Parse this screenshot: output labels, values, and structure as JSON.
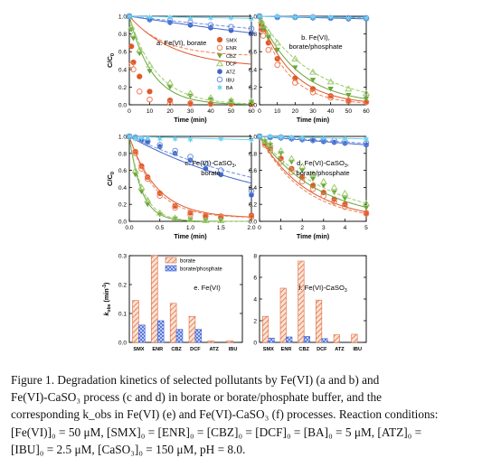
{
  "figure": {
    "caption_lines": [
      "Figure 1. Degradation kinetics of selected pollutants by Fe(VI) (a and b) and",
      "Fe(VI)-CaSO₃ process (c and d) in borate or borate/phosphate buffer, and the",
      "corresponding k_obs in Fe(VI) (e) and Fe(VI)-CaSO₃ (f) processes. Reaction conditions:",
      "[Fe(VI)]₀ = 50 μM, [SMX]₀ = [ENR]₀ = [CBZ]₀ = [DCF]₀ = [BA]₀ = 5 μM, [ATZ]₀ =",
      "[IBU]₀ = 2.5 μM, [CaSO₃]₀ = 150 μM, pH = 8.0."
    ]
  },
  "colors": {
    "SMX": "#dd5a2b",
    "ENR": "#f0805a",
    "CBZ": "#6aa53a",
    "DCF": "#9ccb6b",
    "ATZ": "#3e66c9",
    "IBU": "#6f8fe0",
    "BA": "#6fd4ef"
  },
  "chart_data": [
    {
      "type": "scatter",
      "panel": "a",
      "label": "a. Fe(VI), borate",
      "xlabel": "Time (min)",
      "ylabel": "C/C0",
      "xlim": [
        0,
        60
      ],
      "ylim": [
        0,
        1.0
      ],
      "xticks": [
        0,
        10,
        20,
        30,
        40,
        50,
        60
      ],
      "yticks": [
        0.0,
        0.2,
        0.4,
        0.6,
        0.8,
        1.0
      ],
      "legend": [
        "SMX",
        "ENR",
        "CBZ",
        "DCF",
        "ATZ",
        "IBU",
        "BA"
      ],
      "legend_position": "right",
      "series": [
        {
          "name": "SMX",
          "x": [
            0,
            1,
            2,
            5,
            10,
            20,
            30,
            40,
            50,
            60
          ],
          "y": [
            1.0,
            0.66,
            0.48,
            0.32,
            0.15,
            0.05,
            0.02,
            0.01,
            0.01,
            0.01
          ],
          "fit": [
            0.42,
            0.58,
            0.045
          ]
        },
        {
          "name": "ENR",
          "x": [
            0,
            1,
            2,
            5,
            10,
            20,
            30,
            40,
            50,
            60
          ],
          "y": [
            1.0,
            0.45,
            0.4,
            0.15,
            0.06,
            0.02,
            0.01,
            0.01,
            0.01,
            0.01
          ],
          "fit": [
            0.55,
            0.45,
            0.06
          ]
        },
        {
          "name": "CBZ",
          "x": [
            0,
            1,
            2,
            5,
            10,
            20,
            30,
            40,
            50,
            60
          ],
          "y": [
            1.0,
            0.85,
            0.75,
            0.58,
            0.38,
            0.2,
            0.1,
            0.06,
            0.04,
            0.03
          ],
          "fit": [
            0.0,
            1.0,
            0.09
          ]
        },
        {
          "name": "DCF",
          "x": [
            0,
            1,
            2,
            5,
            10,
            20,
            30,
            40,
            50,
            60
          ],
          "y": [
            1.0,
            0.88,
            0.8,
            0.62,
            0.45,
            0.25,
            0.13,
            0.08,
            0.05,
            0.04
          ],
          "fit": [
            0.0,
            1.0,
            0.075
          ]
        },
        {
          "name": "ATZ",
          "x": [
            0,
            10,
            20,
            30,
            40,
            50,
            60
          ],
          "y": [
            1.0,
            0.96,
            0.93,
            0.9,
            0.87,
            0.84,
            0.81
          ],
          "fit": [
            0.0,
            1.0,
            0.0035
          ]
        },
        {
          "name": "IBU",
          "x": [
            0,
            10,
            20,
            30,
            40,
            50,
            60
          ],
          "y": [
            1.0,
            0.97,
            0.95,
            0.93,
            0.9,
            0.88,
            0.86
          ],
          "fit": [
            0.0,
            1.0,
            0.0025
          ]
        },
        {
          "name": "BA",
          "x": [
            0,
            10,
            20,
            30,
            40,
            50,
            60
          ],
          "y": [
            1.0,
            0.99,
            0.99,
            0.98,
            0.98,
            0.98,
            0.97
          ],
          "fit": [
            0.0,
            1.0,
            0.0004
          ]
        }
      ]
    },
    {
      "type": "scatter",
      "panel": "b",
      "label": "b. Fe(VI), borate/phosphate",
      "xlabel": "Time (min)",
      "ylabel": "",
      "xlim": [
        0,
        60
      ],
      "ylim": [
        0,
        1.0
      ],
      "xticks": [
        0,
        10,
        20,
        30,
        40,
        50,
        60
      ],
      "yticks": [
        0.0,
        0.2,
        0.4,
        0.6,
        0.8,
        1.0
      ],
      "series": [
        {
          "name": "SMX",
          "x": [
            0,
            1,
            2,
            5,
            10,
            20,
            30,
            40,
            50,
            60
          ],
          "y": [
            1.0,
            0.9,
            0.85,
            0.7,
            0.52,
            0.3,
            0.18,
            0.1,
            0.05,
            0.03
          ],
          "fit": [
            0.0,
            1.0,
            0.055
          ]
        },
        {
          "name": "ENR",
          "x": [
            0,
            1,
            2,
            5,
            10,
            20,
            30,
            40,
            50,
            60
          ],
          "y": [
            1.0,
            0.85,
            0.78,
            0.62,
            0.45,
            0.25,
            0.14,
            0.08,
            0.04,
            0.03
          ],
          "fit": [
            0.0,
            1.0,
            0.065
          ]
        },
        {
          "name": "CBZ",
          "x": [
            0,
            1,
            2,
            5,
            10,
            20,
            30,
            40,
            50,
            60
          ],
          "y": [
            1.0,
            0.92,
            0.86,
            0.76,
            0.62,
            0.42,
            0.28,
            0.18,
            0.11,
            0.07
          ],
          "fit": [
            0.0,
            1.0,
            0.045
          ]
        },
        {
          "name": "DCF",
          "x": [
            0,
            1,
            2,
            5,
            10,
            20,
            30,
            40,
            50,
            60
          ],
          "y": [
            1.0,
            0.95,
            0.9,
            0.82,
            0.7,
            0.52,
            0.37,
            0.26,
            0.18,
            0.13
          ],
          "fit": [
            0.0,
            1.0,
            0.033
          ]
        },
        {
          "name": "ATZ",
          "x": [
            0,
            10,
            20,
            30,
            40,
            50,
            60
          ],
          "y": [
            1.0,
            0.99,
            0.99,
            0.98,
            0.98,
            0.97,
            0.97
          ],
          "fit": [
            0.0,
            1.0,
            0.0005
          ]
        },
        {
          "name": "IBU",
          "x": [
            0,
            10,
            20,
            30,
            40,
            50,
            60
          ],
          "y": [
            1.0,
            0.99,
            0.99,
            0.99,
            0.98,
            0.98,
            0.98
          ],
          "fit": [
            0.0,
            1.0,
            0.0003
          ]
        },
        {
          "name": "BA",
          "x": [
            0,
            10,
            20,
            30,
            40,
            50,
            60
          ],
          "y": [
            1.0,
            1.0,
            0.99,
            0.99,
            0.99,
            0.98,
            0.98
          ],
          "fit": [
            0.0,
            1.0,
            0.0002
          ]
        }
      ]
    },
    {
      "type": "scatter",
      "panel": "c",
      "label_line1": "c. Fe(VI)-CaSO",
      "label_sub": "3",
      "label_line1_end": ",",
      "label_line2": "borate",
      "xlabel": "Time (min)",
      "ylabel": "C/C0",
      "xlim": [
        0,
        2.0
      ],
      "ylim": [
        0,
        1.0
      ],
      "xticks": [
        0.0,
        0.5,
        1.0,
        1.5,
        2.0
      ],
      "yticks": [
        0.0,
        0.2,
        0.4,
        0.6,
        0.8,
        1.0
      ],
      "series": [
        {
          "name": "SMX",
          "x": [
            0,
            0.1,
            0.2,
            0.3,
            0.5,
            0.75,
            1.0,
            1.25,
            1.5,
            2.0
          ],
          "y": [
            1.0,
            0.82,
            0.65,
            0.52,
            0.33,
            0.18,
            0.1,
            0.07,
            0.06,
            0.07
          ],
          "fit": [
            0.04,
            0.96,
            2.2
          ]
        },
        {
          "name": "ENR",
          "x": [
            0,
            0.1,
            0.2,
            0.3,
            0.5,
            0.75,
            1.0,
            1.25,
            1.5,
            2.0
          ],
          "y": [
            1.0,
            0.8,
            0.62,
            0.5,
            0.3,
            0.16,
            0.08,
            0.06,
            0.05,
            0.05
          ],
          "fit": [
            0.04,
            0.96,
            2.4
          ]
        },
        {
          "name": "CBZ",
          "x": [
            0,
            0.1,
            0.2,
            0.3,
            0.5,
            0.75,
            1.0,
            1.25,
            1.5
          ],
          "y": [
            1.0,
            0.55,
            0.35,
            0.2,
            0.08,
            0.03,
            0.02,
            0.01,
            0.01
          ],
          "fit": [
            0.0,
            1.0,
            5.0
          ]
        },
        {
          "name": "DCF",
          "x": [
            0,
            0.1,
            0.2,
            0.3,
            0.5,
            0.75,
            1.0,
            1.25,
            1.5
          ],
          "y": [
            1.0,
            0.6,
            0.4,
            0.25,
            0.1,
            0.04,
            0.02,
            0.01,
            0.01
          ],
          "fit": [
            0.0,
            1.0,
            4.5
          ]
        },
        {
          "name": "ATZ",
          "x": [
            0,
            0.1,
            0.2,
            0.3,
            0.5,
            0.75,
            1.0,
            1.25,
            1.5,
            2.0
          ],
          "y": [
            1.0,
            0.98,
            0.95,
            0.93,
            0.88,
            0.8,
            0.72,
            0.62,
            0.55,
            0.31
          ],
          "fit": [
            0.0,
            1.0,
            0.4
          ]
        },
        {
          "name": "IBU",
          "x": [
            0,
            0.1,
            0.2,
            0.3,
            0.5,
            0.75,
            1.0,
            1.25,
            1.5,
            2.0
          ],
          "y": [
            1.0,
            0.99,
            0.96,
            0.94,
            0.9,
            0.83,
            0.76,
            0.68,
            0.6,
            0.36
          ],
          "fit": [
            0.0,
            1.0,
            0.33
          ]
        },
        {
          "name": "BA",
          "x": [
            0,
            0.1,
            0.2,
            0.3,
            0.5,
            0.75,
            1.0,
            1.5,
            2.0
          ],
          "y": [
            1.0,
            0.97,
            0.98,
            0.98,
            0.97,
            0.97,
            0.96,
            0.97,
            0.96
          ],
          "fit": [
            0.0,
            1.0,
            0.02
          ]
        }
      ]
    },
    {
      "type": "scatter",
      "panel": "d",
      "label_line1": "d. Fe(VI)-CaSO",
      "label_sub": "3",
      "label_line1_end": ",",
      "label_line2": "borate/phosphate",
      "xlabel": "Time (min)",
      "ylabel": "",
      "xlim": [
        0,
        5
      ],
      "ylim": [
        0,
        1.0
      ],
      "xticks": [
        0,
        1,
        2,
        3,
        4,
        5
      ],
      "yticks": [
        0.0,
        0.2,
        0.4,
        0.6,
        0.8,
        1.0
      ],
      "series": [
        {
          "name": "SMX",
          "x": [
            0,
            0.25,
            0.5,
            1,
            1.5,
            2,
            2.5,
            3,
            3.5,
            4,
            5
          ],
          "y": [
            1.0,
            0.92,
            0.86,
            0.74,
            0.62,
            0.52,
            0.42,
            0.34,
            0.26,
            0.2,
            0.1
          ],
          "fit": [
            0.0,
            1.0,
            0.44
          ]
        },
        {
          "name": "ENR",
          "x": [
            0,
            0.25,
            0.5,
            1,
            1.5,
            2,
            2.5,
            3,
            3.5,
            4,
            5
          ],
          "y": [
            1.0,
            0.9,
            0.83,
            0.7,
            0.58,
            0.47,
            0.38,
            0.3,
            0.23,
            0.17,
            0.09
          ],
          "fit": [
            0.0,
            1.0,
            0.48
          ]
        },
        {
          "name": "CBZ",
          "x": [
            0,
            0.25,
            0.5,
            1,
            1.5,
            2,
            2.5,
            3,
            3.5,
            4,
            5
          ],
          "y": [
            1.0,
            0.94,
            0.9,
            0.8,
            0.7,
            0.6,
            0.5,
            0.42,
            0.34,
            0.27,
            0.16
          ],
          "fit": [
            0.0,
            1.0,
            0.36
          ]
        },
        {
          "name": "DCF",
          "x": [
            0,
            0.25,
            0.5,
            1,
            1.5,
            2,
            2.5,
            3,
            3.5,
            4,
            5
          ],
          "y": [
            1.0,
            0.95,
            0.91,
            0.83,
            0.74,
            0.65,
            0.56,
            0.47,
            0.4,
            0.33,
            0.21
          ],
          "fit": [
            0.0,
            1.0,
            0.31
          ]
        },
        {
          "name": "ATZ",
          "x": [
            0,
            0.5,
            1,
            1.5,
            2,
            2.5,
            3,
            3.5,
            4,
            5
          ],
          "y": [
            1.0,
            0.99,
            0.98,
            0.97,
            0.96,
            0.95,
            0.94,
            0.93,
            0.92,
            0.9
          ],
          "fit": [
            0.0,
            1.0,
            0.021
          ]
        },
        {
          "name": "IBU",
          "x": [
            0,
            0.5,
            1,
            1.5,
            2,
            2.5,
            3,
            3.5,
            4,
            5
          ],
          "y": [
            1.0,
            0.99,
            0.99,
            0.98,
            0.97,
            0.96,
            0.96,
            0.95,
            0.94,
            0.92
          ],
          "fit": [
            0.0,
            1.0,
            0.017
          ]
        },
        {
          "name": "BA",
          "x": [
            0,
            0.5,
            1,
            1.5,
            2,
            3,
            4,
            5
          ],
          "y": [
            1.0,
            1.0,
            0.99,
            0.99,
            0.98,
            0.98,
            0.97,
            0.97
          ],
          "fit": [
            0.0,
            1.0,
            0.006
          ]
        }
      ]
    },
    {
      "type": "bar",
      "panel": "e",
      "label": "e. Fe(VI)",
      "ylabel": "k_obs (min⁻¹)",
      "ylim": [
        0,
        0.3
      ],
      "yticks": [
        0.0,
        0.1,
        0.2,
        0.3
      ],
      "categories": [
        "SMX",
        "ENR",
        "CBZ",
        "DCF",
        "ATZ",
        "IBU"
      ],
      "legend": [
        "borate",
        "borate/phosphate"
      ],
      "legend_position": "top-right",
      "series": [
        {
          "name": "borate",
          "values": [
            0.145,
            0.3,
            0.135,
            0.09,
            0.005,
            0.005
          ]
        },
        {
          "name": "borate/phosphate",
          "values": [
            0.06,
            0.075,
            0.045,
            0.045,
            0.0,
            0.0
          ]
        }
      ]
    },
    {
      "type": "bar",
      "panel": "f",
      "label_main": "f. Fe(VI)-CaSO",
      "label_sub": "3",
      "ylabel": "",
      "ylim": [
        0,
        8
      ],
      "yticks": [
        0,
        2,
        4,
        6,
        8
      ],
      "categories": [
        "SMX",
        "ENR",
        "CBZ",
        "DCF",
        "ATZ",
        "IBU"
      ],
      "series": [
        {
          "name": "borate",
          "values": [
            2.4,
            5.0,
            7.5,
            3.9,
            0.7,
            0.75
          ]
        },
        {
          "name": "borate/phosphate",
          "values": [
            0.4,
            0.5,
            0.55,
            0.35,
            0.0,
            0.0
          ]
        }
      ]
    }
  ]
}
